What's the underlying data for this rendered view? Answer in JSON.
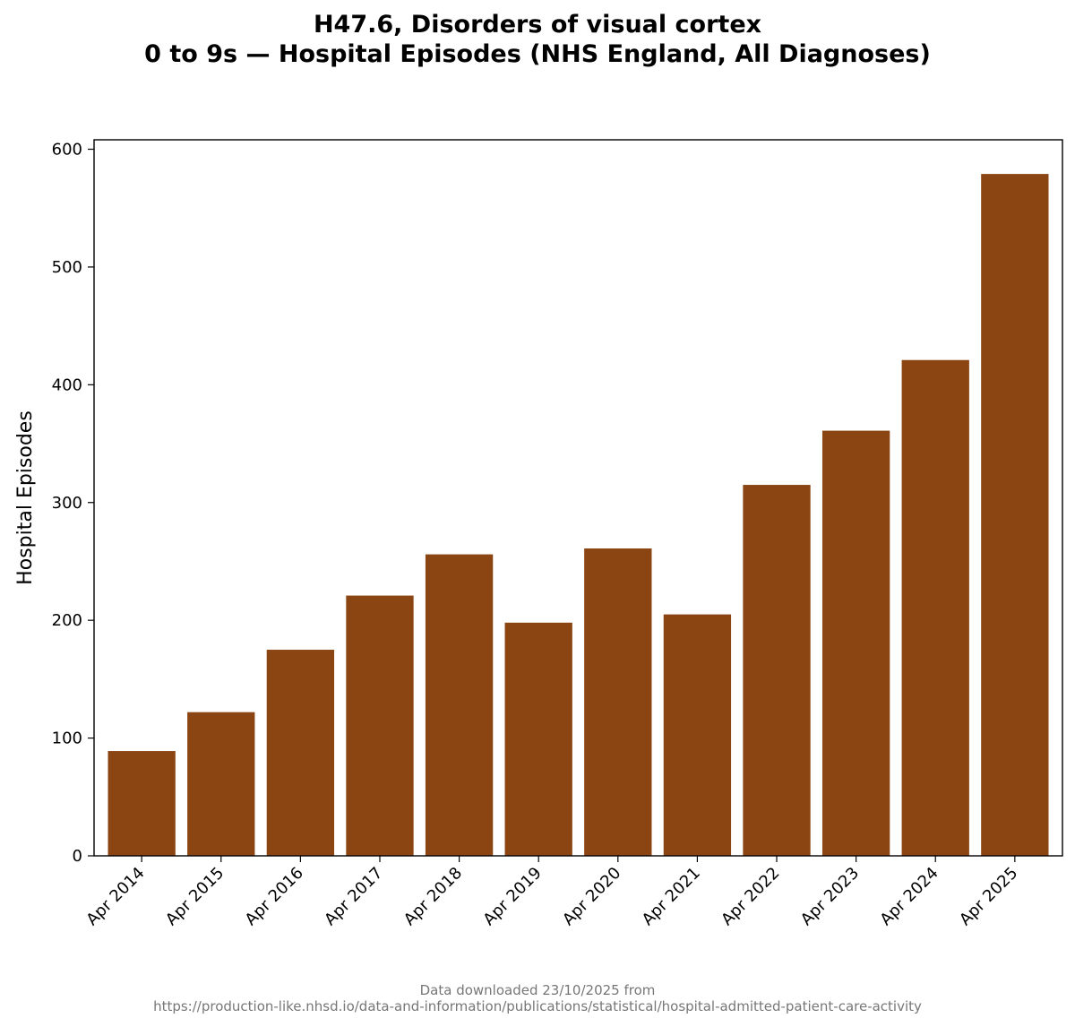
{
  "chart_data": {
    "type": "bar",
    "title_line1": "H47.6, Disorders of visual cortex",
    "title_line2": "0 to 9s — Hospital Episodes (NHS England, All Diagnoses)",
    "xlabel": "",
    "ylabel": "Hospital Episodes",
    "categories": [
      "Apr 2014",
      "Apr 2015",
      "Apr 2016",
      "Apr 2017",
      "Apr 2018",
      "Apr 2019",
      "Apr 2020",
      "Apr 2021",
      "Apr 2022",
      "Apr 2023",
      "Apr 2024",
      "Apr 2025"
    ],
    "values": [
      89,
      122,
      175,
      221,
      256,
      198,
      261,
      205,
      315,
      361,
      421,
      579
    ],
    "ylim": [
      0,
      608
    ],
    "yticks": [
      0,
      100,
      200,
      300,
      400,
      500,
      600
    ],
    "bar_color": "#8b4513",
    "grid": false
  },
  "footnote": {
    "line1": "Data downloaded 23/10/2025 from",
    "line2": "https://production-like.nhsd.io/data-and-information/publications/statistical/hospital-admitted-patient-care-activity"
  }
}
